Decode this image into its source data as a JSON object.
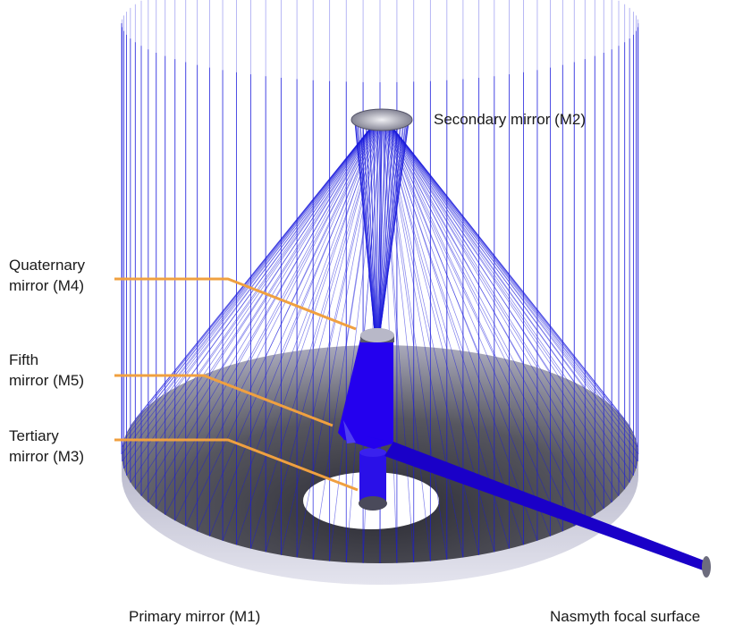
{
  "labels": {
    "secondary": "Secondary mirror (M2)",
    "quaternary": [
      "Quaternary",
      "mirror (M4)"
    ],
    "fifth": [
      "Fifth",
      "mirror (M5)"
    ],
    "tertiary": [
      "Tertiary",
      "mirror (M3)"
    ],
    "primary": "Primary mirror (M1)",
    "nasmyth": "Nasmyth focal surface"
  },
  "colors": {
    "rays": "#1a1adc",
    "beam": "#2200ee",
    "leader": "#f0a040",
    "mirror_dark": "#3a3a44",
    "mirror_light": "#9a9aae",
    "mirror_rim": "#c9c9d8"
  }
}
